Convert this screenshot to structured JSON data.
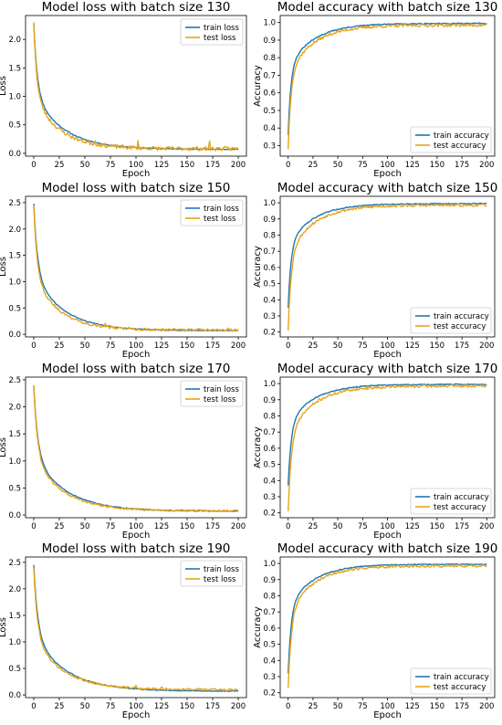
{
  "colors": {
    "train": "#1f77b4",
    "test": "#e8a317"
  },
  "chart_data": [
    {
      "type": "line",
      "title": "Model loss with batch size 130",
      "xlabel": "Epoch",
      "ylabel": "Loss",
      "xlim": [
        0,
        200
      ],
      "ylim": [
        -0.05,
        2.42
      ],
      "xticks": [
        0,
        25,
        50,
        75,
        100,
        125,
        150,
        175,
        200
      ],
      "yticks": [
        0.0,
        0.5,
        1.0,
        1.5,
        2.0
      ],
      "ytick_labels": [
        "0.0",
        "0.5",
        "1.0",
        "1.5",
        "2.0"
      ],
      "legend": "upper right",
      "series": [
        {
          "name": "train loss",
          "color_key": "train",
          "start": 2.28,
          "final": 0.07,
          "k1": 0.3,
          "k2": 0.035,
          "w": 0.55,
          "noise": 0.008,
          "seed": 11
        },
        {
          "name": "test loss",
          "color_key": "test",
          "start": 2.3,
          "final": 0.08,
          "k1": 0.33,
          "k2": 0.04,
          "w": 0.58,
          "noise": 0.035,
          "seed": 23,
          "spikes": [
            [
              60,
              0.06
            ],
            [
              102,
              0.1
            ],
            [
              172,
              0.12
            ]
          ]
        }
      ]
    },
    {
      "type": "line",
      "title": "Model accuracy with batch size 130",
      "xlabel": "Epoch",
      "ylabel": "Accuracy",
      "xlim": [
        0,
        200
      ],
      "ylim": [
        0.24,
        1.04
      ],
      "xticks": [
        0,
        25,
        50,
        75,
        100,
        125,
        150,
        175,
        200
      ],
      "yticks": [
        0.3,
        0.4,
        0.5,
        0.6,
        0.7,
        0.8,
        0.9,
        1.0
      ],
      "ytick_labels": [
        "0.3",
        "0.4",
        "0.5",
        "0.6",
        "0.7",
        "0.8",
        "0.9",
        "1.0"
      ],
      "legend": "lower right",
      "series": [
        {
          "name": "train accuracy",
          "color_key": "train",
          "start": 0.36,
          "final": 0.995,
          "k1": 0.38,
          "k2": 0.04,
          "w": 0.6,
          "noise": 0.003,
          "seed": 31
        },
        {
          "name": "test accuracy",
          "color_key": "test",
          "start": 0.28,
          "final": 0.985,
          "k1": 0.36,
          "k2": 0.04,
          "w": 0.6,
          "noise": 0.008,
          "seed": 37
        }
      ]
    },
    {
      "type": "line",
      "title": "Model loss with batch size 150",
      "xlabel": "Epoch",
      "ylabel": "Loss",
      "xlim": [
        0,
        200
      ],
      "ylim": [
        -0.05,
        2.62
      ],
      "xticks": [
        0,
        25,
        50,
        75,
        100,
        125,
        150,
        175,
        200
      ],
      "yticks": [
        0.0,
        0.5,
        1.0,
        1.5,
        2.0,
        2.5
      ],
      "ytick_labels": [
        "0.0",
        "0.5",
        "1.0",
        "1.5",
        "2.0",
        "2.5"
      ],
      "legend": "upper right",
      "series": [
        {
          "name": "train loss",
          "color_key": "train",
          "start": 2.48,
          "final": 0.07,
          "k1": 0.28,
          "k2": 0.035,
          "w": 0.55,
          "noise": 0.008,
          "seed": 41
        },
        {
          "name": "test loss",
          "color_key": "test",
          "start": 2.45,
          "final": 0.08,
          "k1": 0.3,
          "k2": 0.04,
          "w": 0.57,
          "noise": 0.025,
          "seed": 43,
          "spikes": [
            [
              70,
              0.06
            ],
            [
              190,
              0.06
            ]
          ]
        }
      ]
    },
    {
      "type": "line",
      "title": "Model accuracy with batch size 150",
      "xlabel": "Epoch",
      "ylabel": "Accuracy",
      "xlim": [
        0,
        200
      ],
      "ylim": [
        0.17,
        1.04
      ],
      "xticks": [
        0,
        25,
        50,
        75,
        100,
        125,
        150,
        175,
        200
      ],
      "yticks": [
        0.2,
        0.3,
        0.4,
        0.5,
        0.6,
        0.7,
        0.8,
        0.9,
        1.0
      ],
      "ytick_labels": [
        "0.2",
        "0.3",
        "0.4",
        "0.5",
        "0.6",
        "0.7",
        "0.8",
        "0.9",
        "1.0"
      ],
      "legend": "lower right",
      "series": [
        {
          "name": "train accuracy",
          "color_key": "train",
          "start": 0.35,
          "final": 0.995,
          "k1": 0.36,
          "k2": 0.04,
          "w": 0.6,
          "noise": 0.003,
          "seed": 47
        },
        {
          "name": "test accuracy",
          "color_key": "test",
          "start": 0.21,
          "final": 0.985,
          "k1": 0.34,
          "k2": 0.04,
          "w": 0.6,
          "noise": 0.008,
          "seed": 53
        }
      ]
    },
    {
      "type": "line",
      "title": "Model loss with batch size 170",
      "xlabel": "Epoch",
      "ylabel": "Loss",
      "xlim": [
        0,
        200
      ],
      "ylim": [
        -0.05,
        2.55
      ],
      "xticks": [
        0,
        25,
        50,
        75,
        100,
        125,
        150,
        175,
        200
      ],
      "yticks": [
        0.0,
        0.5,
        1.0,
        1.5,
        2.0,
        2.5
      ],
      "ytick_labels": [
        "0.0",
        "0.5",
        "1.0",
        "1.5",
        "2.0",
        "2.5"
      ],
      "legend": "upper right",
      "series": [
        {
          "name": "train loss",
          "color_key": "train",
          "start": 2.38,
          "final": 0.07,
          "k1": 0.26,
          "k2": 0.032,
          "w": 0.55,
          "noise": 0.008,
          "seed": 59
        },
        {
          "name": "test loss",
          "color_key": "test",
          "start": 2.4,
          "final": 0.075,
          "k1": 0.28,
          "k2": 0.035,
          "w": 0.57,
          "noise": 0.02,
          "seed": 61
        }
      ]
    },
    {
      "type": "line",
      "title": "Model accuracy with batch size 170",
      "xlabel": "Epoch",
      "ylabel": "Accuracy",
      "xlim": [
        0,
        200
      ],
      "ylim": [
        0.17,
        1.04
      ],
      "xticks": [
        0,
        25,
        50,
        75,
        100,
        125,
        150,
        175,
        200
      ],
      "yticks": [
        0.2,
        0.3,
        0.4,
        0.5,
        0.6,
        0.7,
        0.8,
        0.9,
        1.0
      ],
      "ytick_labels": [
        "0.2",
        "0.3",
        "0.4",
        "0.5",
        "0.6",
        "0.7",
        "0.8",
        "0.9",
        "1.0"
      ],
      "legend": "lower right",
      "series": [
        {
          "name": "train accuracy",
          "color_key": "train",
          "start": 0.37,
          "final": 0.995,
          "k1": 0.34,
          "k2": 0.04,
          "w": 0.6,
          "noise": 0.003,
          "seed": 67
        },
        {
          "name": "test accuracy",
          "color_key": "test",
          "start": 0.21,
          "final": 0.985,
          "k1": 0.32,
          "k2": 0.04,
          "w": 0.6,
          "noise": 0.008,
          "seed": 71
        }
      ]
    },
    {
      "type": "line",
      "title": "Model loss with batch size 190",
      "xlabel": "Epoch",
      "ylabel": "Loss",
      "xlim": [
        0,
        200
      ],
      "ylim": [
        -0.05,
        2.6
      ],
      "xticks": [
        0,
        25,
        50,
        75,
        100,
        125,
        150,
        175,
        200
      ],
      "yticks": [
        0.0,
        0.5,
        1.0,
        1.5,
        2.0,
        2.5
      ],
      "ytick_labels": [
        "0.0",
        "0.5",
        "1.0",
        "1.5",
        "2.0",
        "2.5"
      ],
      "legend": "upper right",
      "series": [
        {
          "name": "train loss",
          "color_key": "train",
          "start": 2.45,
          "final": 0.07,
          "k1": 0.26,
          "k2": 0.032,
          "w": 0.55,
          "noise": 0.008,
          "seed": 73
        },
        {
          "name": "test loss",
          "color_key": "test",
          "start": 2.4,
          "final": 0.1,
          "k1": 0.28,
          "k2": 0.035,
          "w": 0.57,
          "noise": 0.02,
          "seed": 79,
          "spikes": [
            [
              100,
              0.05
            ],
            [
              125,
              0.05
            ]
          ]
        }
      ]
    },
    {
      "type": "line",
      "title": "Model accuracy with batch size 190",
      "xlabel": "Epoch",
      "ylabel": "Accuracy",
      "xlim": [
        0,
        200
      ],
      "ylim": [
        0.17,
        1.04
      ],
      "xticks": [
        0,
        25,
        50,
        75,
        100,
        125,
        150,
        175,
        200
      ],
      "yticks": [
        0.2,
        0.3,
        0.4,
        0.5,
        0.6,
        0.7,
        0.8,
        0.9,
        1.0
      ],
      "ytick_labels": [
        "0.2",
        "0.3",
        "0.4",
        "0.5",
        "0.6",
        "0.7",
        "0.8",
        "0.9",
        "1.0"
      ],
      "legend": "lower right",
      "series": [
        {
          "name": "train accuracy",
          "color_key": "train",
          "start": 0.32,
          "final": 0.995,
          "k1": 0.34,
          "k2": 0.04,
          "w": 0.6,
          "noise": 0.003,
          "seed": 83
        },
        {
          "name": "test accuracy",
          "color_key": "test",
          "start": 0.23,
          "final": 0.985,
          "k1": 0.32,
          "k2": 0.04,
          "w": 0.6,
          "noise": 0.008,
          "seed": 89
        }
      ]
    }
  ]
}
